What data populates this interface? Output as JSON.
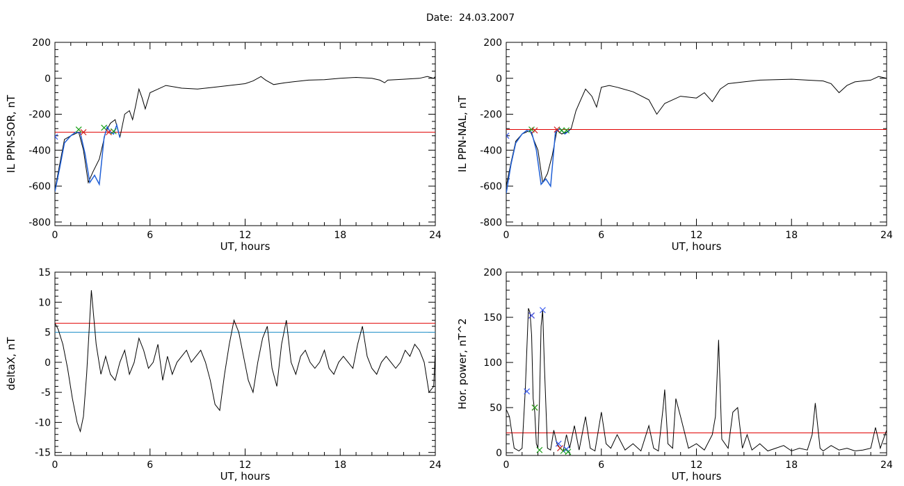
{
  "title": "Date:  24.03.2007",
  "chart_data": [
    {
      "type": "line",
      "ylabel": "IL PPN-SOR, nT",
      "xlabel": "UT, hours",
      "xlim": [
        0,
        24
      ],
      "ylim": [
        -820,
        200
      ],
      "xticks": [
        0,
        6,
        12,
        18,
        24
      ],
      "yticks": [
        -800,
        -600,
        -400,
        -200,
        0,
        200
      ],
      "hlines": [
        {
          "y": -300,
          "color": "#e00000"
        }
      ],
      "series": [
        {
          "color": "#000000",
          "x": [
            0,
            0.3,
            0.6,
            1.0,
            1.5,
            1.8,
            2.1,
            2.4,
            2.8,
            3.2,
            3.5,
            3.8,
            4.1,
            4.4,
            4.7,
            4.9,
            5.1,
            5.3,
            5.5,
            5.7,
            6.0,
            6.5,
            7,
            8,
            9,
            10,
            11,
            12,
            12.5,
            13,
            13.3,
            13.8,
            14.5,
            15,
            16,
            17,
            18,
            19,
            20,
            20.5,
            20.8,
            21,
            22,
            23,
            23.5,
            23.9,
            24
          ],
          "y": [
            -620,
            -480,
            -340,
            -320,
            -300,
            -400,
            -580,
            -520,
            -450,
            -300,
            -250,
            -230,
            -330,
            -200,
            -180,
            -230,
            -150,
            -60,
            -110,
            -170,
            -80,
            -60,
            -40,
            -55,
            -60,
            -50,
            -40,
            -30,
            -15,
            10,
            -10,
            -35,
            -25,
            -20,
            -10,
            -8,
            0,
            5,
            0,
            -10,
            -25,
            -10,
            -5,
            0,
            10,
            0,
            10
          ]
        },
        {
          "color": "#1f5fd6",
          "x": [
            0,
            0.3,
            0.6,
            1.0,
            1.3,
            1.6,
            1.9,
            2.2,
            2.5,
            2.8,
            3.1,
            3.3,
            3.5,
            3.7,
            3.9,
            4.1
          ],
          "y": [
            -630,
            -500,
            -360,
            -320,
            -300,
            -305,
            -420,
            -580,
            -540,
            -590,
            -330,
            -270,
            -300,
            -310,
            -260,
            -330
          ]
        }
      ],
      "markers": [
        {
          "x": 1.5,
          "y": -285,
          "color": "#1aa01a"
        },
        {
          "x": 1.8,
          "y": -300,
          "color": "#d02020"
        },
        {
          "x": 3.1,
          "y": -275,
          "color": "#1aa01a"
        },
        {
          "x": 3.4,
          "y": -300,
          "color": "#d02020"
        },
        {
          "x": 3.7,
          "y": -295,
          "color": "#1aa01a"
        },
        {
          "x": 0.0,
          "y": -325,
          "color": "#3355ee"
        }
      ]
    },
    {
      "type": "line",
      "ylabel": "IL PPN-NAL, nT",
      "xlabel": "UT, hours",
      "xlim": [
        0,
        24
      ],
      "ylim": [
        -820,
        200
      ],
      "xticks": [
        0,
        6,
        12,
        18,
        24
      ],
      "yticks": [
        -800,
        -600,
        -400,
        -200,
        0,
        200
      ],
      "hlines": [
        {
          "y": -285,
          "color": "#e00000"
        }
      ],
      "series": [
        {
          "color": "#000000",
          "x": [
            0,
            0.3,
            0.6,
            1.0,
            1.5,
            2.0,
            2.3,
            2.6,
            2.9,
            3.2,
            3.5,
            3.8,
            4.1,
            4.4,
            4.7,
            5.0,
            5.4,
            5.7,
            6.0,
            6.5,
            7,
            8,
            9,
            9.5,
            10,
            11,
            12,
            12.5,
            13,
            13.5,
            14,
            15,
            16,
            17,
            18,
            19,
            20,
            20.5,
            21,
            21.5,
            22,
            23,
            23.5,
            24
          ],
          "y": [
            -600,
            -470,
            -350,
            -310,
            -290,
            -400,
            -580,
            -530,
            -430,
            -290,
            -310,
            -300,
            -280,
            -180,
            -120,
            -60,
            -100,
            -160,
            -50,
            -40,
            -50,
            -75,
            -120,
            -200,
            -140,
            -100,
            -110,
            -80,
            -130,
            -60,
            -30,
            -20,
            -10,
            -8,
            -5,
            -10,
            -15,
            -30,
            -80,
            -40,
            -20,
            -10,
            10,
            0
          ]
        },
        {
          "color": "#1f5fd6",
          "x": [
            0,
            0.3,
            0.6,
            1.0,
            1.3,
            1.6,
            1.9,
            2.2,
            2.5,
            2.8,
            3.1,
            3.4,
            3.7,
            4.0
          ],
          "y": [
            -640,
            -480,
            -360,
            -310,
            -290,
            -300,
            -400,
            -590,
            -560,
            -600,
            -300,
            -280,
            -310,
            -290
          ]
        }
      ],
      "markers": [
        {
          "x": 1.6,
          "y": -285,
          "color": "#1aa01a"
        },
        {
          "x": 1.8,
          "y": -290,
          "color": "#d02020"
        },
        {
          "x": 3.2,
          "y": -285,
          "color": "#d02020"
        },
        {
          "x": 3.5,
          "y": -290,
          "color": "#1aa01a"
        },
        {
          "x": 3.8,
          "y": -290,
          "color": "#1aa01a"
        },
        {
          "x": 0.0,
          "y": -320,
          "color": "#3355ee"
        }
      ]
    },
    {
      "type": "line",
      "ylabel": "deltaX, nT",
      "xlabel": "UT, hours",
      "xlim": [
        0,
        24
      ],
      "ylim": [
        -15.5,
        15
      ],
      "xticks": [
        0,
        6,
        12,
        18,
        24
      ],
      "yticks": [
        -15,
        -10,
        -5,
        0,
        5,
        10,
        15
      ],
      "hlines": [
        {
          "y": 6.5,
          "color": "#e00000"
        },
        {
          "y": 5.0,
          "color": "#1f8fc8"
        }
      ],
      "series": [
        {
          "color": "#000000",
          "x": [
            0,
            0.2,
            0.5,
            0.8,
            1.1,
            1.4,
            1.6,
            1.8,
            2.0,
            2.3,
            2.6,
            2.9,
            3.2,
            3.5,
            3.8,
            4.1,
            4.4,
            4.7,
            5.0,
            5.3,
            5.6,
            5.9,
            6.2,
            6.5,
            6.8,
            7.1,
            7.4,
            7.7,
            8.0,
            8.3,
            8.6,
            8.9,
            9.2,
            9.5,
            9.8,
            10.1,
            10.4,
            10.7,
            11.0,
            11.3,
            11.6,
            11.9,
            12.2,
            12.5,
            12.8,
            13.1,
            13.4,
            13.7,
            14.0,
            14.3,
            14.6,
            14.9,
            15.2,
            15.5,
            15.8,
            16.1,
            16.4,
            16.7,
            17.0,
            17.3,
            17.6,
            17.9,
            18.2,
            18.5,
            18.8,
            19.1,
            19.4,
            19.7,
            20.0,
            20.3,
            20.6,
            20.9,
            21.2,
            21.5,
            21.8,
            22.1,
            22.4,
            22.7,
            23.0,
            23.3,
            23.6,
            23.9,
            24
          ],
          "y": [
            6.5,
            5.5,
            3,
            -1,
            -6,
            -10,
            -11.5,
            -9,
            -2,
            12,
            3,
            -2,
            1,
            -2,
            -3,
            0,
            2,
            -2,
            0,
            4,
            2,
            -1,
            0,
            3,
            -3,
            1,
            -2,
            0,
            1,
            2,
            0,
            1,
            2,
            0,
            -3,
            -7,
            -8,
            -2,
            3,
            7,
            5,
            1,
            -3,
            -5,
            0,
            4,
            6,
            -1,
            -4,
            3,
            7,
            0,
            -2,
            1,
            2,
            0,
            -1,
            0,
            2,
            -1,
            -2,
            0,
            1,
            0,
            -1,
            3,
            6,
            1,
            -1,
            -2,
            0,
            1,
            0,
            -1,
            0,
            2,
            1,
            3,
            2,
            0,
            -5,
            -4,
            2
          ]
        }
      ],
      "markers": []
    },
    {
      "type": "line",
      "ylabel": "Hor. power, nT^2",
      "xlabel": "UT, hours",
      "xlim": [
        0,
        24
      ],
      "ylim": [
        -3,
        200
      ],
      "xticks": [
        0,
        6,
        12,
        18,
        24
      ],
      "yticks": [
        0,
        50,
        100,
        150,
        200
      ],
      "hlines": [
        {
          "y": 22,
          "color": "#e00000"
        }
      ],
      "series": [
        {
          "color": "#000000",
          "x": [
            0,
            0.2,
            0.5,
            0.8,
            1.0,
            1.2,
            1.4,
            1.5,
            1.6,
            1.7,
            1.8,
            1.9,
            2.0,
            2.1,
            2.2,
            2.3,
            2.4,
            2.6,
            2.8,
            3.0,
            3.2,
            3.4,
            3.6,
            3.8,
            4.0,
            4.3,
            4.6,
            5.0,
            5.3,
            5.6,
            6.0,
            6.3,
            6.6,
            7.0,
            7.5,
            8,
            8.5,
            9,
            9.3,
            9.6,
            9.9,
            10.0,
            10.2,
            10.5,
            10.7,
            11.0,
            11.5,
            12,
            12.5,
            13,
            13.2,
            13.4,
            13.6,
            14,
            14.3,
            14.6,
            14.9,
            15.2,
            15.5,
            16,
            16.5,
            17,
            17.5,
            18,
            18.5,
            19,
            19.3,
            19.5,
            19.8,
            20,
            20.5,
            21,
            21.5,
            22,
            22.5,
            23,
            23.3,
            23.6,
            23.9,
            24
          ],
          "y": [
            48,
            40,
            5,
            2,
            5,
            70,
            160,
            155,
            130,
            60,
            45,
            10,
            5,
            60,
            140,
            158,
            100,
            5,
            3,
            25,
            10,
            5,
            2,
            20,
            5,
            30,
            3,
            40,
            5,
            2,
            45,
            10,
            5,
            20,
            3,
            10,
            2,
            30,
            5,
            2,
            50,
            70,
            10,
            5,
            60,
            40,
            5,
            10,
            3,
            20,
            40,
            125,
            15,
            5,
            45,
            50,
            5,
            20,
            3,
            10,
            2,
            5,
            8,
            2,
            5,
            3,
            20,
            55,
            5,
            2,
            8,
            3,
            5,
            2,
            3,
            5,
            28,
            5,
            20,
            25
          ]
        }
      ],
      "markers": [
        {
          "x": 1.3,
          "y": 68,
          "color": "#3355ee"
        },
        {
          "x": 1.6,
          "y": 152,
          "color": "#d02020"
        },
        {
          "x": 1.6,
          "y": 152,
          "color": "#3355ee"
        },
        {
          "x": 1.8,
          "y": 50,
          "color": "#d02020"
        },
        {
          "x": 1.8,
          "y": 50,
          "color": "#1aa01a"
        },
        {
          "x": 2.1,
          "y": 3,
          "color": "#1aa01a"
        },
        {
          "x": 2.3,
          "y": 158,
          "color": "#3355ee"
        },
        {
          "x": 3.3,
          "y": 10,
          "color": "#3355ee"
        },
        {
          "x": 3.4,
          "y": 5,
          "color": "#d02020"
        },
        {
          "x": 3.6,
          "y": 2,
          "color": "#1aa01a"
        },
        {
          "x": 3.8,
          "y": 4,
          "color": "#3355ee"
        },
        {
          "x": 3.9,
          "y": 1,
          "color": "#1aa01a"
        }
      ]
    }
  ]
}
